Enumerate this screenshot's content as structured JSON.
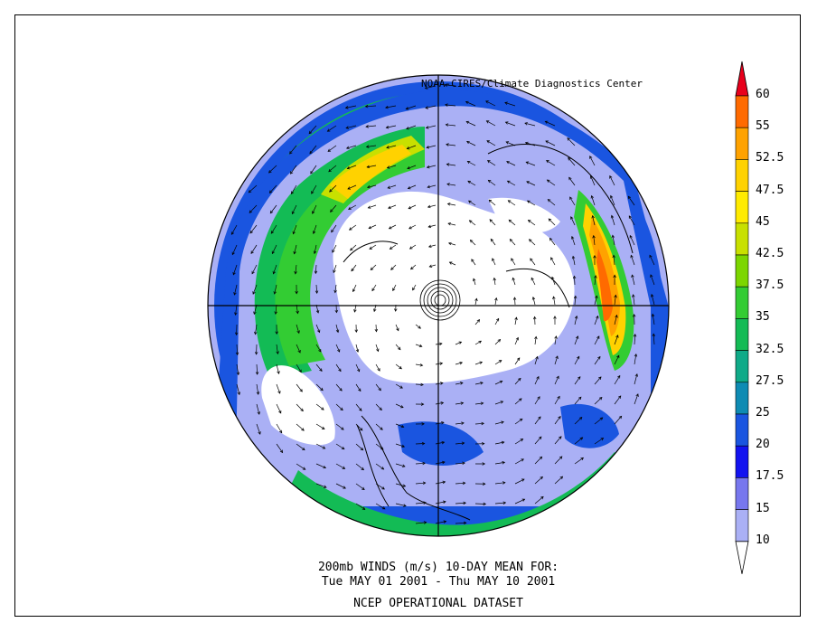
{
  "credit": "NOAA-CIRES/Climate Diagnostics Center",
  "caption": {
    "line1": "200mb WINDS (m/s)   10-DAY MEAN FOR:",
    "line2": "Tue MAY 01 2001 - Thu MAY 10 2001",
    "line3": "NCEP OPERATIONAL DATASET"
  },
  "colorbar": {
    "labels": [
      "60",
      "55",
      "52.5",
      "47.5",
      "45",
      "42.5",
      "37.5",
      "35",
      "32.5",
      "27.5",
      "25",
      "20",
      "17.5",
      "15",
      "10"
    ],
    "colors": [
      "#e8001c",
      "#ff6a00",
      "#ffa200",
      "#ffd200",
      "#ffeb00",
      "#c8e000",
      "#7cd600",
      "#33cc33",
      "#13bb55",
      "#0faa88",
      "#0e8bb3",
      "#1a55e0",
      "#1212f0",
      "#7777ee",
      "#aab0f5",
      "#ffffff"
    ]
  },
  "chart_data": {
    "type": "heatmap",
    "variable": "200mb WINDS (m/s)",
    "period": "Tue MAY 01 2001 - Thu MAY 10 2001",
    "dataset": "NCEP OPERATIONAL DATASET",
    "projection": "polar stereographic, Northern Hemisphere",
    "contour_levels": [
      10,
      15,
      17.5,
      20,
      25,
      27.5,
      32.5,
      35,
      37.5,
      42.5,
      45,
      47.5,
      52.5,
      55,
      60
    ],
    "jet_maxima": [
      {
        "region": "over Asia (right side of map)",
        "approx_speed": 52.5
      },
      {
        "region": "over Pacific (upper left of map)",
        "approx_speed": 45
      }
    ]
  }
}
